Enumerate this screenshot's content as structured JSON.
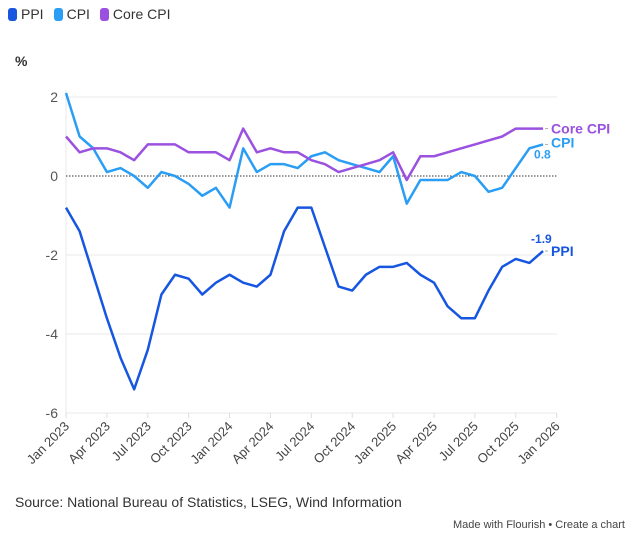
{
  "chart_data": {
    "type": "line",
    "ylabel": "%",
    "ylim": [
      -6,
      2.2
    ],
    "yticks": [
      2,
      0,
      -2,
      -4,
      -6
    ],
    "xticks": [
      "Jan 2023",
      "Apr 2023",
      "Jul 2023",
      "Oct 2023",
      "Jan 2024",
      "Apr 2024",
      "Jul 2024",
      "Oct 2024",
      "Jan 2025",
      "Apr 2025",
      "Jul 2025",
      "Oct 2025",
      "Jan 2026"
    ],
    "x_start": "2023-01",
    "x_end_tick": "2026-01",
    "grid": true,
    "legend_placement": "top-left",
    "zero_line": "dotted",
    "series": [
      {
        "name": "PPI",
        "color": "#1656e0",
        "end_value_label": "-1.9",
        "end_label": "PPI",
        "values": [
          -0.8,
          -1.4,
          -2.5,
          -3.6,
          -4.6,
          -5.4,
          -4.4,
          -3.0,
          -2.5,
          -2.6,
          -3.0,
          -2.7,
          -2.5,
          -2.7,
          -2.8,
          -2.5,
          -1.4,
          -0.8,
          -0.8,
          -1.8,
          -2.8,
          -2.9,
          -2.5,
          -2.3,
          -2.3,
          -2.2,
          -2.5,
          -2.7,
          -3.3,
          -3.6,
          -3.6,
          -2.9,
          -2.3,
          -2.1,
          -2.2,
          -1.9
        ]
      },
      {
        "name": "CPI",
        "color": "#2a9df4",
        "end_value_label": "0.8",
        "end_label": "CPI",
        "values": [
          2.1,
          1.0,
          0.7,
          0.1,
          0.2,
          0.0,
          -0.3,
          0.1,
          0.0,
          -0.2,
          -0.5,
          -0.3,
          -0.8,
          0.7,
          0.1,
          0.3,
          0.3,
          0.2,
          0.5,
          0.6,
          0.4,
          0.3,
          0.2,
          0.1,
          0.5,
          -0.7,
          -0.1,
          -0.1,
          -0.1,
          0.1,
          0.0,
          -0.4,
          -0.3,
          0.2,
          0.7,
          0.8
        ]
      },
      {
        "name": "Core CPI",
        "color": "#9b51e0",
        "end_label": "Core CPI",
        "values": [
          1.0,
          0.6,
          0.7,
          0.7,
          0.6,
          0.4,
          0.8,
          0.8,
          0.8,
          0.6,
          0.6,
          0.6,
          0.4,
          1.2,
          0.6,
          0.7,
          0.6,
          0.6,
          0.4,
          0.3,
          0.1,
          0.2,
          0.3,
          0.4,
          0.6,
          -0.1,
          0.5,
          0.5,
          0.6,
          0.7,
          0.8,
          0.9,
          1.0,
          1.2,
          1.2,
          1.2
        ]
      }
    ]
  },
  "legend": [
    {
      "label": "PPI"
    },
    {
      "label": "CPI"
    },
    {
      "label": "Core CPI"
    }
  ],
  "source": "Source: National Bureau of Statistics, LSEG, Wind Information",
  "credit": "Made with Flourish • Create a chart"
}
